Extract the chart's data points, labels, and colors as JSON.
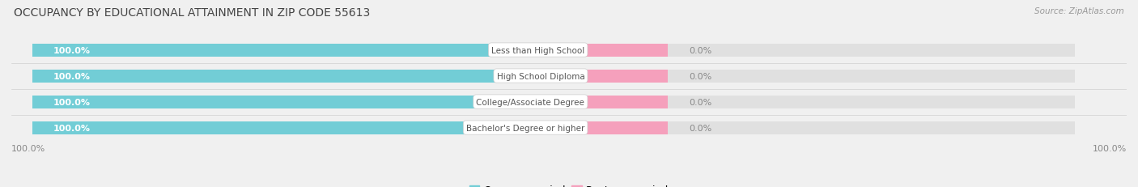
{
  "title": "OCCUPANCY BY EDUCATIONAL ATTAINMENT IN ZIP CODE 55613",
  "source": "Source: ZipAtlas.com",
  "categories": [
    "Less than High School",
    "High School Diploma",
    "College/Associate Degree",
    "Bachelor's Degree or higher"
  ],
  "owner_values": [
    100.0,
    100.0,
    100.0,
    100.0
  ],
  "renter_values": [
    0.0,
    0.0,
    0.0,
    0.0
  ],
  "owner_color": "#72cdd6",
  "renter_color": "#f5a0bc",
  "bg_color": "#f0f0f0",
  "bar_bg_color": "#e0e0e0",
  "title_fontsize": 10,
  "label_fontsize": 8,
  "tick_fontsize": 8,
  "legend_fontsize": 9,
  "owner_label_color": "#ffffff",
  "value_color": "#888888",
  "category_text_color": "#555555",
  "bottom_left_label": "100.0%",
  "bottom_right_label": "100.0%",
  "owner_pct_display": [
    "100.0%",
    "100.0%",
    "100.0%",
    "100.0%"
  ],
  "renter_pct_display": [
    "0.0%",
    "0.0%",
    "0.0%",
    "0.0%"
  ]
}
